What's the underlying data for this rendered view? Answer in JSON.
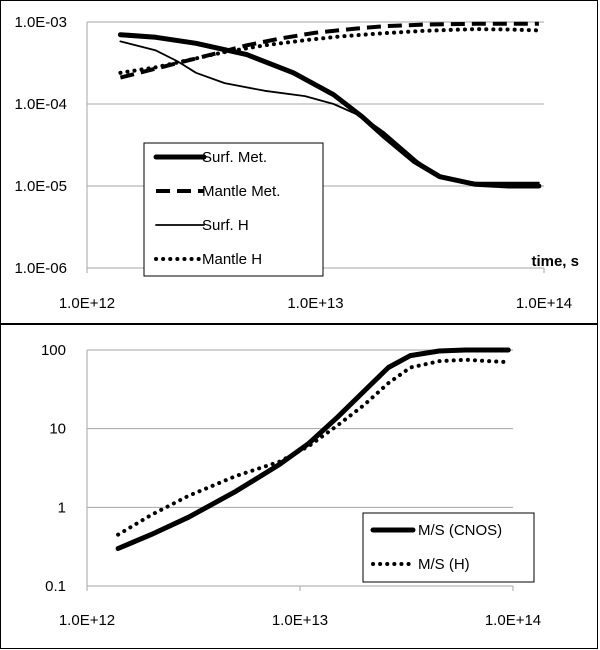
{
  "chart_data": [
    {
      "type": "line",
      "scale": {
        "x": "log",
        "y": "log"
      },
      "xlim": [
        1000000000000.0,
        100000000000000.0
      ],
      "ylim": [
        1e-06,
        0.001
      ],
      "xlabel": "time, s",
      "x_tick_labels": [
        "1.0E+12",
        "1.0E+13",
        "1.0E+14"
      ],
      "y_tick_labels": [
        "1.0E-06",
        "1.0E-05",
        "1.0E-04",
        "1.0E-03"
      ],
      "legend_position": "bottom-left",
      "series": [
        {
          "name": "Surf. Met.",
          "style": "thick-solid",
          "x": [
            1400000000000.0,
            2000000000000.0,
            3000000000000.0,
            5000000000000.0,
            8000000000000.0,
            12000000000000.0,
            16000000000000.0,
            20000000000000.0,
            27000000000000.0,
            35000000000000.0,
            50000000000000.0,
            70000000000000.0,
            95000000000000.0
          ],
          "y": [
            0.0007,
            0.00065,
            0.00055,
            0.0004,
            0.00024,
            0.00013,
            7e-05,
            4e-05,
            2e-05,
            1.3e-05,
            1.05e-05,
            1e-05,
            1e-05
          ]
        },
        {
          "name": "Mantle Met.",
          "style": "dashed",
          "x": [
            1400000000000.0,
            2000000000000.0,
            3000000000000.0,
            4000000000000.0,
            5000000000000.0,
            7000000000000.0,
            10000000000000.0,
            15000000000000.0,
            20000000000000.0,
            30000000000000.0,
            50000000000000.0,
            95000000000000.0
          ],
          "y": [
            0.00021,
            0.00027,
            0.00036,
            0.00044,
            0.00052,
            0.00063,
            0.00074,
            0.00083,
            0.00089,
            0.00093,
            0.00095,
            0.00095
          ]
        },
        {
          "name": "Surf. H",
          "style": "thin-solid",
          "x": [
            1400000000000.0,
            2000000000000.0,
            2500000000000.0,
            3000000000000.0,
            4000000000000.0,
            6000000000000.0,
            9000000000000.0,
            12000000000000.0,
            16000000000000.0,
            20000000000000.0,
            28000000000000.0,
            35000000000000.0,
            50000000000000.0,
            95000000000000.0
          ],
          "y": [
            0.00058,
            0.00045,
            0.00033,
            0.00024,
            0.00018,
            0.000145,
            0.000125,
            0.0001,
            7e-05,
            4.5e-05,
            2e-05,
            1.3e-05,
            1.1e-05,
            1.1e-05
          ]
        },
        {
          "name": "Mantle H",
          "style": "dotted",
          "x": [
            1400000000000.0,
            2000000000000.0,
            3000000000000.0,
            4000000000000.0,
            6000000000000.0,
            9000000000000.0,
            13000000000000.0,
            20000000000000.0,
            30000000000000.0,
            50000000000000.0,
            70000000000000.0,
            95000000000000.0
          ],
          "y": [
            0.00024,
            0.00028,
            0.00036,
            0.00043,
            0.00052,
            0.0006,
            0.00067,
            0.00073,
            0.00078,
            0.00082,
            0.00081,
            0.00079
          ]
        }
      ]
    },
    {
      "type": "line",
      "scale": {
        "x": "log",
        "y": "log"
      },
      "xlim": [
        1000000000000.0,
        100000000000000.0
      ],
      "ylim": [
        0.1,
        100
      ],
      "xlabel": "",
      "x_tick_labels": [
        "1.0E+12",
        "1.0E+13",
        "1.0E+14"
      ],
      "y_tick_labels": [
        "0.1",
        "1",
        "10",
        "100"
      ],
      "legend_position": "bottom-right",
      "series": [
        {
          "name": "M/S (CNOS)",
          "style": "thick-solid",
          "x": [
            1400000000000.0,
            2000000000000.0,
            3000000000000.0,
            5000000000000.0,
            8000000000000.0,
            11000000000000.0,
            15000000000000.0,
            20000000000000.0,
            26000000000000.0,
            33000000000000.0,
            45000000000000.0,
            60000000000000.0,
            95000000000000.0
          ],
          "y": [
            0.3,
            0.45,
            0.75,
            1.6,
            3.5,
            6.5,
            14,
            30,
            60,
            85,
            97,
            100,
            100
          ]
        },
        {
          "name": "M/S (H)",
          "style": "dotted",
          "x": [
            1400000000000.0,
            2000000000000.0,
            3000000000000.0,
            5000000000000.0,
            8000000000000.0,
            11000000000000.0,
            15000000000000.0,
            20000000000000.0,
            26000000000000.0,
            33000000000000.0,
            45000000000000.0,
            60000000000000.0,
            95000000000000.0
          ],
          "y": [
            0.45,
            0.8,
            1.4,
            2.5,
            3.8,
            6,
            11,
            20,
            38,
            60,
            72,
            75,
            70
          ]
        }
      ]
    }
  ]
}
